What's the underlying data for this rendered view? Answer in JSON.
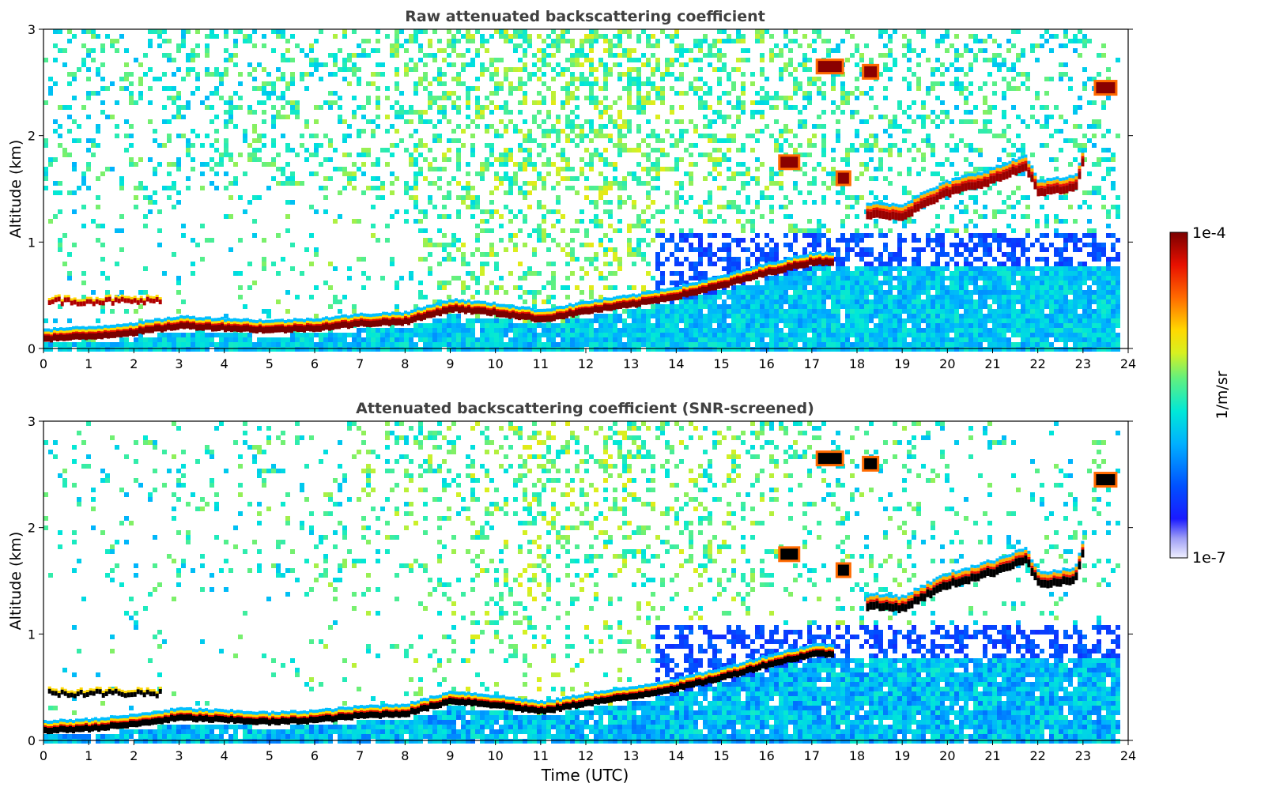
{
  "chart_data": {
    "type": "heatmap",
    "panels": [
      {
        "title": "Raw attenuated backscattering coefficient",
        "ylabel": "Altitude (km)",
        "xlim": [
          0,
          24
        ],
        "ylim": [
          0,
          3
        ],
        "xticks": [
          0,
          1,
          2,
          3,
          4,
          5,
          6,
          7,
          8,
          9,
          10,
          11,
          12,
          13,
          14,
          15,
          16,
          17,
          18,
          19,
          20,
          21,
          22,
          23,
          24
        ],
        "yticks": [
          0,
          1,
          2,
          3
        ],
        "features": {
          "boundary_layer": [
            [
              0,
              0.1
            ],
            [
              1,
              0.12
            ],
            [
              2,
              0.16
            ],
            [
              3,
              0.22
            ],
            [
              4,
              0.2
            ],
            [
              5,
              0.18
            ],
            [
              6,
              0.2
            ],
            [
              7,
              0.24
            ],
            [
              8,
              0.26
            ],
            [
              9,
              0.38
            ],
            [
              10,
              0.34
            ],
            [
              11,
              0.28
            ],
            [
              12,
              0.36
            ],
            [
              13,
              0.42
            ],
            [
              14,
              0.5
            ],
            [
              15,
              0.6
            ],
            [
              16,
              0.72
            ],
            [
              17,
              0.82
            ],
            [
              17.4,
              0.82
            ]
          ],
          "cloud_layer": [
            [
              18.2,
              1.28
            ],
            [
              19,
              1.26
            ],
            [
              19.5,
              1.38
            ],
            [
              20,
              1.48
            ],
            [
              21,
              1.6
            ],
            [
              21.7,
              1.72
            ],
            [
              22,
              1.48
            ],
            [
              22.8,
              1.52
            ],
            [
              23,
              1.82
            ]
          ],
          "aloft_patches": [
            [
              17.4,
              2.65
            ],
            [
              18.3,
              2.6
            ],
            [
              16.5,
              1.75
            ],
            [
              17.7,
              1.6
            ],
            [
              23.5,
              2.45
            ]
          ]
        }
      },
      {
        "title": "Attenuated backscattering coefficient (SNR-screened)",
        "ylabel": "Altitude (km)",
        "xlabel": "Time (UTC)",
        "xlim": [
          0,
          24
        ],
        "ylim": [
          0,
          3
        ],
        "xticks": [
          0,
          1,
          2,
          3,
          4,
          5,
          6,
          7,
          8,
          9,
          10,
          11,
          12,
          13,
          14,
          15,
          16,
          17,
          18,
          19,
          20,
          21,
          22,
          23,
          24
        ],
        "yticks": [
          0,
          1,
          2,
          3
        ],
        "features": {
          "boundary_layer": [
            [
              0,
              0.1
            ],
            [
              1,
              0.12
            ],
            [
              2,
              0.16
            ],
            [
              3,
              0.22
            ],
            [
              4,
              0.2
            ],
            [
              5,
              0.18
            ],
            [
              6,
              0.2
            ],
            [
              7,
              0.24
            ],
            [
              8,
              0.26
            ],
            [
              9,
              0.38
            ],
            [
              10,
              0.34
            ],
            [
              11,
              0.28
            ],
            [
              12,
              0.36
            ],
            [
              13,
              0.42
            ],
            [
              14,
              0.5
            ],
            [
              15,
              0.6
            ],
            [
              16,
              0.72
            ],
            [
              17,
              0.82
            ],
            [
              17.4,
              0.82
            ]
          ],
          "cloud_layer": [
            [
              18.2,
              1.28
            ],
            [
              19,
              1.26
            ],
            [
              19.5,
              1.38
            ],
            [
              20,
              1.48
            ],
            [
              21,
              1.6
            ],
            [
              21.7,
              1.72
            ],
            [
              22,
              1.48
            ],
            [
              22.8,
              1.52
            ],
            [
              23,
              1.82
            ]
          ],
          "aloft_patches": [
            [
              17.4,
              2.65
            ],
            [
              18.3,
              2.6
            ],
            [
              16.5,
              1.75
            ],
            [
              17.7,
              1.6
            ],
            [
              23.5,
              2.45
            ]
          ]
        }
      }
    ],
    "colorbar": {
      "label": "1/m/sr",
      "min_label": "1e-7",
      "max_label": "1e-4",
      "scale": "log",
      "colormap": "jet"
    }
  }
}
